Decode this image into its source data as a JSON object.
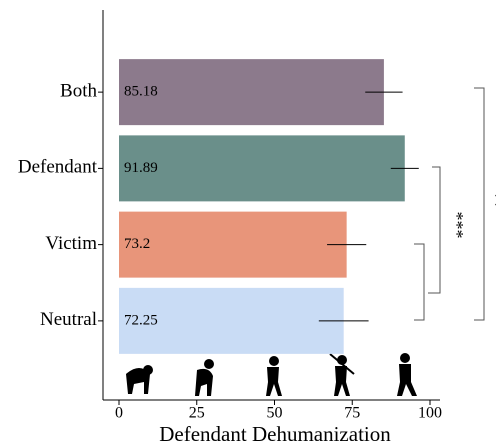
{
  "chart_data": {
    "type": "barh",
    "categories": [
      "Both",
      "Defendant",
      "Victim",
      "Neutral"
    ],
    "values": [
      85.18,
      91.89,
      73.2,
      72.25
    ],
    "errors": [
      6,
      4.5,
      6.3,
      8
    ],
    "colors": [
      "#8c7a8c",
      "#6a8f8a",
      "#e8957a",
      "#c9dcf5"
    ],
    "xlim": [
      0,
      100
    ],
    "xticks": [
      0,
      25,
      50,
      75,
      100
    ],
    "xlabel": "Defendant Dehumanization",
    "annotations": [
      "***",
      "**"
    ]
  }
}
